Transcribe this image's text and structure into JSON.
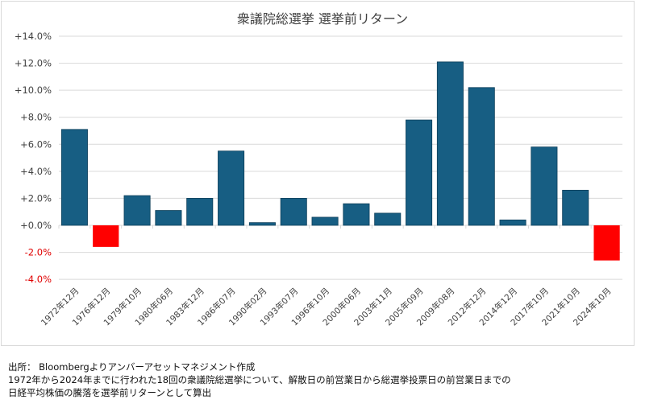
{
  "chart_data": {
    "type": "bar",
    "title": "衆議院総選挙 選挙前リターン",
    "xlabel": "",
    "ylabel": "",
    "ylim": [
      -4,
      14
    ],
    "yticks": [
      14,
      12,
      10,
      8,
      6,
      4,
      2,
      0,
      -2,
      -4
    ],
    "ytick_labels": [
      "+14.0%",
      "+12.0%",
      "+10.0%",
      "+8.0%",
      "+6.0%",
      "+4.0%",
      "+2.0%",
      "+0.0%",
      "-2.0%",
      "-4.0%"
    ],
    "grid": true,
    "categories": [
      "1972年12月",
      "1976年12月",
      "1979年10月",
      "1980年06月",
      "1983年12月",
      "1986年07月",
      "1990年02月",
      "1993年07月",
      "1996年10月",
      "2000年06月",
      "2003年11月",
      "2005年09月",
      "2009年08月",
      "2012年12月",
      "2014年12月",
      "2017年10月",
      "2021年10月",
      "2024年10月"
    ],
    "values": [
      7.1,
      -1.6,
      2.2,
      1.1,
      2.0,
      5.5,
      0.2,
      2.0,
      0.6,
      1.6,
      0.9,
      7.8,
      12.1,
      10.2,
      0.4,
      5.8,
      2.6,
      -2.6
    ],
    "colors": {
      "positive": "#175e83",
      "negative": "#ff0000",
      "negative_tick": "#e00000"
    }
  },
  "notes": [
    "出所： Bloombergよりアンバーアセットマネジメント作成",
    "1972年から2024年までに行われた18回の衆議院総選挙について、解散日の前営業日から総選挙投票日の前営業日までの",
    "日経平均株価の騰落を選挙前リターンとして算出"
  ]
}
